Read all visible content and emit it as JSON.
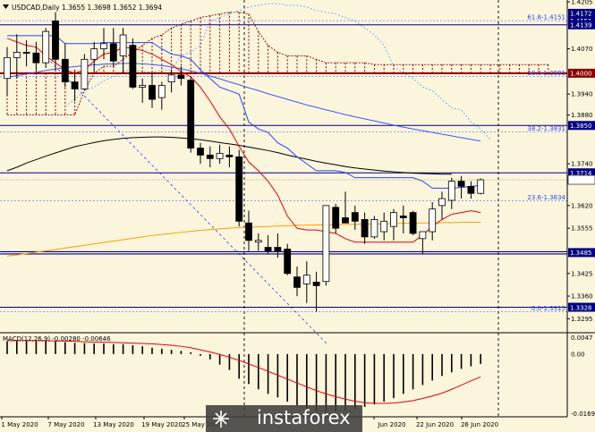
{
  "header": {
    "icon": "dropdown-triangle-icon",
    "title": "USDCAD,Daily  1.3655 1.3698 1.3652 1.3694"
  },
  "watermark": {
    "text": "instaforex",
    "icon": "instaforex-logo-icon"
  },
  "macd_label": "MACD(12,26,9) -0.00280 -0.00646",
  "colors": {
    "background": "#fbf5dc",
    "bull": "#ffffff",
    "bear": "#000000",
    "ma_red": "#e8000b",
    "ma_blue": "#2546ff",
    "ma_black": "#000000",
    "ma_orange": "#ff9f00",
    "cloud": "#8b0000",
    "chikou": "#6fb4ff",
    "level_line": "#00007f",
    "red_level": "#8b0000"
  },
  "chart_data": {
    "type": "candlestick",
    "title": "USDCAD,Daily",
    "ohlc_header": {
      "open": 1.3655,
      "high": 1.3698,
      "low": 1.3652,
      "close": 1.3694
    },
    "ylim": [
      1.326,
      1.42
    ],
    "y_ticks": [
      "1.4205",
      "1.4070",
      "1.3940",
      "1.3880",
      "1.3740",
      "1.3620",
      "1.3555",
      "1.3425",
      "1.3360",
      "1.3295"
    ],
    "x_ticks": [
      "1 May 2020",
      "7 May 2020",
      "13 May 2020",
      "19 May 2020",
      "25 May 2020",
      "Jun 2020",
      "22 Jun 2020",
      "26 Jun 2020"
    ],
    "candles": [
      [
        1.3985,
        1.4075,
        1.3935,
        1.4045
      ],
      [
        1.4045,
        1.4112,
        1.3985,
        1.406
      ],
      [
        1.406,
        1.4095,
        1.402,
        1.4058
      ],
      [
        1.4058,
        1.409,
        1.4005,
        1.403
      ],
      [
        1.403,
        1.413,
        1.4015,
        1.412
      ],
      [
        1.415,
        1.4175,
        1.4005,
        1.404
      ],
      [
        1.404,
        1.4085,
        1.396,
        1.3975
      ],
      [
        1.3975,
        1.401,
        1.392,
        1.3955
      ],
      [
        1.3955,
        1.4055,
        1.395,
        1.404
      ],
      [
        1.404,
        1.409,
        1.4,
        1.407
      ],
      [
        1.407,
        1.413,
        1.404,
        1.4085
      ],
      [
        1.4085,
        1.413,
        1.402,
        1.4035
      ],
      [
        1.405,
        1.413,
        1.4,
        1.411
      ],
      [
        1.408,
        1.41,
        1.3955,
        1.396
      ],
      [
        1.396,
        1.3985,
        1.3915,
        1.3965
      ],
      [
        1.3965,
        1.4,
        1.39,
        1.3925
      ],
      [
        1.393,
        1.3975,
        1.3895,
        1.3965
      ],
      [
        1.3975,
        1.401,
        1.3945,
        1.3995
      ],
      [
        1.3995,
        1.402,
        1.3965,
        1.3985
      ],
      [
        1.398,
        1.399,
        1.3772,
        1.3785
      ],
      [
        1.3785,
        1.38,
        1.374,
        1.3765
      ],
      [
        1.3765,
        1.379,
        1.373,
        1.3755
      ],
      [
        1.3755,
        1.3795,
        1.374,
        1.377
      ],
      [
        1.3765,
        1.379,
        1.373,
        1.376
      ],
      [
        1.376,
        1.378,
        1.356,
        1.3575
      ],
      [
        1.357,
        1.3605,
        1.349,
        1.352
      ],
      [
        1.3515,
        1.354,
        1.349,
        1.352
      ],
      [
        1.35,
        1.3535,
        1.348,
        1.349
      ],
      [
        1.35,
        1.354,
        1.347,
        1.349
      ],
      [
        1.3495,
        1.351,
        1.342,
        1.3425
      ],
      [
        1.3415,
        1.3445,
        1.336,
        1.3385
      ],
      [
        1.3395,
        1.346,
        1.334,
        1.342
      ],
      [
        1.34,
        1.343,
        1.3315,
        1.339
      ],
      [
        1.3402,
        1.362,
        1.339,
        1.362
      ],
      [
        1.3615,
        1.3625,
        1.354,
        1.3555
      ],
      [
        1.3585,
        1.366,
        1.357,
        1.357
      ],
      [
        1.36,
        1.362,
        1.355,
        1.3575
      ],
      [
        1.358,
        1.36,
        1.351,
        1.353
      ],
      [
        1.353,
        1.359,
        1.3525,
        1.358
      ],
      [
        1.3545,
        1.36,
        1.352,
        1.3575
      ],
      [
        1.356,
        1.361,
        1.352,
        1.36
      ],
      [
        1.359,
        1.362,
        1.354,
        1.3585
      ],
      [
        1.36,
        1.3605,
        1.3535,
        1.354
      ],
      [
        1.3525,
        1.3545,
        1.348,
        1.3545
      ],
      [
        1.3545,
        1.363,
        1.352,
        1.361
      ],
      [
        1.362,
        1.366,
        1.358,
        1.364
      ],
      [
        1.3635,
        1.37,
        1.361,
        1.369
      ],
      [
        1.369,
        1.3705,
        1.364,
        1.3675
      ],
      [
        1.3675,
        1.369,
        1.364,
        1.3655
      ],
      [
        1.3655,
        1.3698,
        1.3652,
        1.3694
      ]
    ],
    "indicators": {
      "ma_red": [
        1.41,
        1.409,
        1.408,
        1.4075,
        1.405,
        1.403,
        1.401,
        1.4,
        1.401,
        1.4035,
        1.4055,
        1.406,
        1.4075,
        1.4072,
        1.4065,
        1.4055,
        1.404,
        1.4025,
        1.4005,
        1.399,
        1.396,
        1.392,
        1.3875,
        1.384,
        1.379,
        1.3745,
        1.372,
        1.369,
        1.365,
        1.359,
        1.3555,
        1.355,
        1.355,
        1.3545,
        1.354,
        1.3525,
        1.3515,
        1.3515,
        1.3515,
        1.3515,
        1.3515,
        1.3515,
        1.3515,
        1.3535,
        1.356,
        1.358,
        1.3595,
        1.36,
        1.3605,
        1.36
      ],
      "ma_blue": [
        1.4108,
        1.4108,
        1.4108,
        1.4108,
        1.4108,
        1.4108,
        1.4085,
        1.4085,
        1.4085,
        1.4085,
        1.4088,
        1.4088,
        1.4088,
        1.4088,
        1.4088,
        1.4088,
        1.407,
        1.4055,
        1.405,
        1.404,
        1.401,
        1.3985,
        1.396,
        1.395,
        1.394,
        1.386,
        1.384,
        1.383,
        1.38,
        1.3785,
        1.376,
        1.374,
        1.372,
        1.372,
        1.372,
        1.3715,
        1.37,
        1.37,
        1.37,
        1.37,
        1.37,
        1.37,
        1.37,
        1.369,
        1.367,
        1.367,
        1.367,
        1.3672,
        1.3675,
        1.3678
      ],
      "ma_black": [
        1.372,
        1.373,
        1.3742,
        1.3752,
        1.3762,
        1.3771,
        1.378,
        1.3789,
        1.3795,
        1.3801,
        1.3806,
        1.381,
        1.3813,
        1.3815,
        1.3816,
        1.3817,
        1.3817,
        1.3816,
        1.3814,
        1.3812,
        1.3809,
        1.3805,
        1.3801,
        1.3797,
        1.3793,
        1.3788,
        1.3783,
        1.3778,
        1.3772,
        1.3765,
        1.3759,
        1.3753,
        1.3747,
        1.3742,
        1.3737,
        1.3732,
        1.3728,
        1.3725,
        1.3722,
        1.3719,
        1.3717,
        1.3715,
        1.3713,
        1.3712,
        1.3711,
        1.371,
        1.371
      ],
      "ma_orange": [
        1.3475,
        1.3478,
        1.3482,
        1.3486,
        1.349,
        1.3494,
        1.3498,
        1.3502,
        1.3506,
        1.351,
        1.3514,
        1.3518,
        1.3522,
        1.3526,
        1.353,
        1.3534,
        1.3537,
        1.354,
        1.3543,
        1.3546,
        1.3549,
        1.3551,
        1.3553,
        1.3555,
        1.3557,
        1.3558,
        1.3559,
        1.356,
        1.3561,
        1.3562,
        1.3563,
        1.3564,
        1.3564,
        1.3565,
        1.3565,
        1.3566,
        1.3566,
        1.3567,
        1.3567,
        1.3568,
        1.3568,
        1.3569,
        1.3569,
        1.357,
        1.357,
        1.3571,
        1.3571,
        1.3572,
        1.3572,
        1.3572
      ],
      "ma_blue_slow": [
        1.3988,
        1.3993,
        1.3998,
        1.4003,
        1.4008,
        1.4012,
        1.4016,
        1.4019,
        1.4022,
        1.4024,
        1.4026,
        1.4027,
        1.4028,
        1.4028,
        1.4027,
        1.4025,
        1.4022,
        1.4018,
        1.4013,
        1.4007,
        1.4,
        1.3992,
        1.3984,
        1.3975,
        1.3967,
        1.3958,
        1.395,
        1.3941,
        1.3933,
        1.3925,
        1.3917,
        1.3909,
        1.3902,
        1.3895,
        1.3888,
        1.3881,
        1.3875,
        1.3869,
        1.3863,
        1.3857,
        1.3851,
        1.3845,
        1.384,
        1.3835,
        1.383,
        1.3825,
        1.382,
        1.3815,
        1.381,
        1.3805
      ],
      "cloud_span_a": [
        1.388,
        1.388,
        1.388,
        1.388,
        1.388,
        1.388,
        1.388,
        1.388,
        1.395,
        1.4,
        1.402,
        1.402,
        1.404,
        1.406,
        1.408,
        1.41,
        1.411,
        1.413,
        1.414,
        1.415,
        1.416,
        1.4165,
        1.417,
        1.4175,
        1.4175,
        1.417,
        1.412,
        1.408,
        1.406,
        1.405,
        1.405,
        1.405,
        1.404,
        1.403,
        1.403,
        1.403,
        1.403,
        1.403,
        1.4025,
        1.4025,
        1.4025,
        1.4025,
        1.4025,
        1.4025,
        1.4025,
        1.4025,
        1.4025,
        1.4025,
        1.4025,
        1.4025,
        1.4025,
        1.4025,
        1.4025,
        1.4025,
        1.4025,
        1.4025,
        1.4025,
        1.4025,
        1.4025,
        1.4025,
        1.4025,
        1.4025,
        1.4025,
        1.4025,
        1.4025,
        1.4025,
        1.4025,
        1.4025,
        1.4025,
        1.4025,
        1.4025,
        1.4025,
        1.4025,
        1.4025,
        1.4025
      ],
      "cloud_span_b": [
        1.4,
        1.4,
        1.4,
        1.4,
        1.4,
        1.4,
        1.4,
        1.4,
        1.4,
        1.4,
        1.4,
        1.4,
        1.4,
        1.4,
        1.4,
        1.4,
        1.4,
        1.4,
        1.4,
        1.4,
        1.4,
        1.4,
        1.4,
        1.4,
        1.4,
        1.4,
        1.4,
        1.4,
        1.4,
        1.4,
        1.4,
        1.4,
        1.4,
        1.4,
        1.4,
        1.4,
        1.4,
        1.4,
        1.4,
        1.4,
        1.4,
        1.4,
        1.4,
        1.4,
        1.4,
        1.4,
        1.4,
        1.4,
        1.4,
        1.4,
        1.4,
        1.4,
        1.4,
        1.4,
        1.4,
        1.4,
        1.4,
        1.4,
        1.4,
        1.4,
        1.4,
        1.4,
        1.4,
        1.4,
        1.4,
        1.4,
        1.4,
        1.4,
        1.4,
        1.4,
        1.4,
        1.4,
        1.4,
        1.4,
        1.4
      ],
      "chikou": [
        1.3905,
        1.3925,
        1.395,
        1.396,
        1.3978,
        1.399,
        1.4005,
        1.401,
        1.4005,
        1.4002,
        1.401,
        1.401,
        1.405,
        1.406,
        1.408,
        1.415,
        1.416,
        1.417,
        1.418,
        1.419,
        1.4195,
        1.42,
        1.42,
        1.4195,
        1.4195,
        1.419,
        1.418,
        1.4175,
        1.417,
        1.416,
        1.415,
        1.413,
        1.411,
        1.408,
        1.402,
        1.4,
        1.3985,
        1.396,
        1.395,
        1.3925,
        1.39,
        1.3895,
        1.386,
        1.384,
        1.381
      ]
    },
    "levels": [
      {
        "value": 1.4172,
        "label": "1.4172",
        "line": "none",
        "fib": ""
      },
      {
        "value": 1.4151,
        "label": "1.4151",
        "line": "fib",
        "fib": "61.8-1.4151"
      },
      {
        "value": 1.4139,
        "label": "1.4139",
        "line": "solid",
        "fib": ""
      },
      {
        "value": 1.4,
        "label": "1.4000",
        "line": "red",
        "fib": ""
      },
      {
        "value": 1.3991,
        "label": "",
        "line": "fib",
        "fib": "50.0-1.3991"
      },
      {
        "value": 1.385,
        "label": "1.3850",
        "line": "solid",
        "fib": ""
      },
      {
        "value": 1.3831,
        "label": "",
        "line": "fib",
        "fib": "38.2-1.3831"
      },
      {
        "value": 1.3714,
        "label": "1.3714",
        "line": "solid",
        "fib": ""
      },
      {
        "value": 1.3694,
        "label": "1.3694",
        "line": "price",
        "fib": ""
      },
      {
        "value": 1.3634,
        "label": "",
        "line": "fib",
        "fib": "23.6-1.3634"
      },
      {
        "value": 1.3485,
        "label": "1.3485",
        "line": "double",
        "fib": ""
      },
      {
        "value": 1.3328,
        "label": "1.3328",
        "line": "solid",
        "fib": ""
      },
      {
        "value": 1.3315,
        "label": "",
        "line": "fib",
        "fib": "0.0-1.3315"
      }
    ],
    "macd": {
      "ylim": [
        -0.0178,
        0.0058
      ],
      "y_ticks": [
        "0.0047",
        "0.00",
        "-0.01693"
      ],
      "histogram": [
        0.0036,
        0.0037,
        0.0037,
        0.0037,
        0.0038,
        0.0036,
        0.0034,
        0.0032,
        0.0031,
        0.003,
        0.003,
        0.0028,
        0.0028,
        0.0025,
        0.0022,
        0.0018,
        0.0015,
        0.0012,
        0.0009,
        0.0005,
        -0.0005,
        -0.0015,
        -0.003,
        -0.0045,
        -0.007,
        -0.0085,
        -0.01,
        -0.0113,
        -0.0123,
        -0.0135,
        -0.0145,
        -0.0155,
        -0.0163,
        -0.0165,
        -0.0163,
        -0.016,
        -0.0155,
        -0.015,
        -0.0143,
        -0.0135,
        -0.0125,
        -0.0113,
        -0.01,
        -0.0088,
        -0.0075,
        -0.0062,
        -0.0052,
        -0.0042,
        -0.0035,
        -0.0028
      ],
      "signal": [
        0.0038,
        0.0038,
        0.0038,
        0.0038,
        0.0038,
        0.0037,
        0.0037,
        0.0036,
        0.0035,
        0.0034,
        0.0034,
        0.0033,
        0.0032,
        0.0031,
        0.003,
        0.0029,
        0.0027,
        0.0025,
        0.0022,
        0.0018,
        0.0012,
        0.0006,
        -0.0001,
        -0.0009,
        -0.0018,
        -0.0028,
        -0.0038,
        -0.0049,
        -0.006,
        -0.0071,
        -0.0082,
        -0.0093,
        -0.0104,
        -0.0113,
        -0.0121,
        -0.0128,
        -0.0134,
        -0.0138,
        -0.014,
        -0.014,
        -0.0139,
        -0.0136,
        -0.0132,
        -0.0126,
        -0.0119,
        -0.0111,
        -0.01,
        -0.0088,
        -0.0076,
        -0.0065
      ]
    }
  }
}
